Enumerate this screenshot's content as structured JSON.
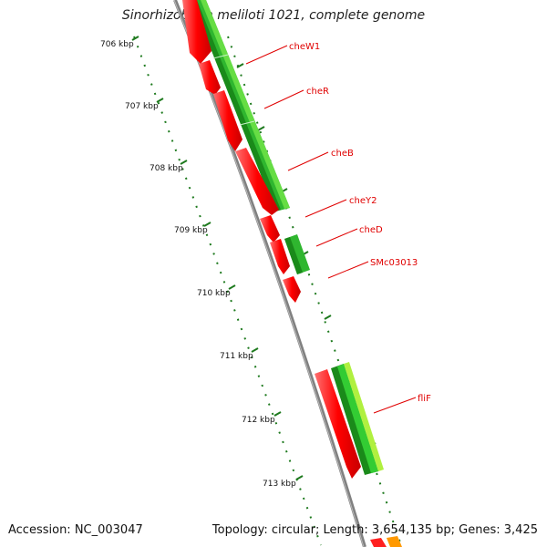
{
  "title": "Sinorhizobium meliloti 1021, complete genome",
  "accession": "Accession: NC_003047",
  "topology": "Topology: circular; Length: 3,654,135 bp; Genes: 3,425",
  "ticks": [
    "706 kbp",
    "707 kbp",
    "708 kbp",
    "709 kbp",
    "710 kbp",
    "711 kbp",
    "712 kbp",
    "713 kbp"
  ],
  "gene_labels": [
    "cheW1",
    "cheR",
    "cheB",
    "cheY2",
    "cheD",
    "SMc03013",
    "fliF"
  ],
  "colors": {
    "label": "#e00000",
    "forward_strand": "#ff0000",
    "green_dark": "#1a8a1a",
    "green": "#33cc33",
    "green_light": "#99ee33",
    "backbone": "#808080",
    "tick": "#1e7a1e"
  }
}
